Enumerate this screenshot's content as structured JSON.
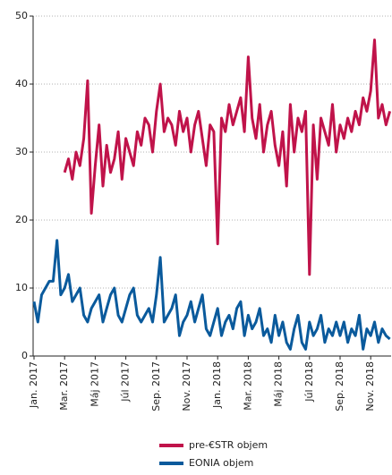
{
  "chart_data": {
    "type": "line",
    "categories": [
      "Jan. 2017",
      null,
      null,
      null,
      null,
      null,
      null,
      null,
      "Mar. 2017",
      null,
      null,
      null,
      null,
      null,
      null,
      null,
      "Máj 2017",
      null,
      null,
      null,
      null,
      null,
      null,
      null,
      "Júl 2017",
      null,
      null,
      null,
      null,
      null,
      null,
      null,
      "Sep. 2017",
      null,
      null,
      null,
      null,
      null,
      null,
      null,
      "Nov. 2017",
      null,
      null,
      null,
      null,
      null,
      null,
      null,
      "Jan. 2018",
      null,
      null,
      null,
      null,
      null,
      null,
      null,
      "Mar. 2018",
      null,
      null,
      null,
      null,
      null,
      null,
      null,
      "Máj 2018",
      null,
      null,
      null,
      null,
      null,
      null,
      null,
      "Júl 2018",
      null,
      null,
      null,
      null,
      null,
      null,
      null,
      "Sep. 2018",
      null,
      null,
      null,
      null,
      null,
      null,
      null,
      "Nov. 2018",
      null,
      null,
      null,
      null,
      null
    ],
    "series": [
      {
        "name": "pre-€STR objem",
        "color": "#c0134a",
        "values": [
          null,
          null,
          null,
          null,
          null,
          null,
          null,
          null,
          27,
          29,
          26,
          30,
          28,
          32,
          40.5,
          21,
          28,
          34,
          25,
          31,
          27,
          29,
          33,
          26,
          32,
          30,
          28,
          33,
          31,
          35,
          34,
          30,
          36,
          40,
          33,
          35,
          34,
          31,
          36,
          33,
          35,
          30,
          34,
          36,
          32,
          28,
          34,
          33,
          16.5,
          35,
          33,
          37,
          34,
          36,
          38,
          33,
          44,
          35,
          32,
          37,
          30,
          34,
          36,
          31,
          28,
          33,
          25,
          37,
          30,
          35,
          33,
          36,
          12,
          34,
          26,
          35,
          33,
          31,
          37,
          30,
          34,
          32,
          35,
          33,
          36,
          34,
          38,
          36,
          39,
          46.5,
          35,
          37,
          34,
          36
        ]
      },
      {
        "name": "EONIA objem",
        "color": "#0a5a9c",
        "values": [
          8,
          5,
          9,
          10,
          11,
          11,
          17,
          9,
          10,
          12,
          8,
          9,
          10,
          6,
          5,
          7,
          8,
          9,
          5,
          7,
          9,
          10,
          6,
          5,
          7,
          9,
          10,
          6,
          5,
          6,
          7,
          5,
          9,
          14.5,
          5,
          6,
          7,
          9,
          3,
          5,
          6,
          8,
          5,
          7,
          9,
          4,
          3,
          5,
          7,
          3,
          5,
          6,
          4,
          7,
          8,
          3,
          6,
          4,
          5,
          7,
          3,
          4,
          2,
          6,
          3,
          5,
          2,
          1,
          4,
          6,
          2,
          1,
          5,
          3,
          4,
          6,
          2,
          4,
          3,
          5,
          3,
          5,
          2,
          4,
          3,
          6,
          1,
          4,
          3,
          5,
          2,
          4,
          3,
          2.5
        ]
      }
    ],
    "ylim": [
      0,
      50
    ],
    "yticks": [
      0,
      10,
      20,
      30,
      40,
      50
    ],
    "grid": true
  }
}
